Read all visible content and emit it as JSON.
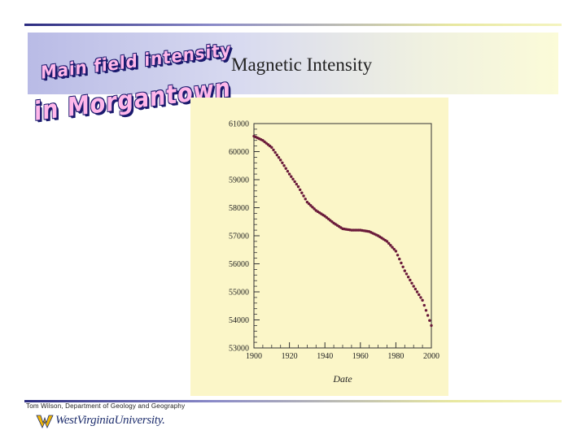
{
  "header": {
    "fancy_title_line1": "Main field intensity",
    "fancy_title_line2": "in Morgantown",
    "slide_title": "Magnetic Intensity"
  },
  "footer": {
    "credit": "Tom Wilson, Department of Geology and Geography",
    "logo_text": "WestVirginiaUniversity."
  },
  "colors": {
    "accent_navy": "#2b2b80",
    "chart_background": "#fbf6c8",
    "data_point": "#6a1a3a",
    "fancy_title_fill": "#ffb7ea"
  },
  "chart_data": {
    "type": "scatter",
    "title": "",
    "xlabel": "Date",
    "ylabel": "",
    "xlim": [
      1900,
      2000
    ],
    "ylim": [
      53000,
      61000
    ],
    "x_ticks": [
      "1900",
      "1920",
      "1940",
      "1960",
      "1980",
      "2000"
    ],
    "y_ticks": [
      "53000",
      "54000",
      "55000",
      "56000",
      "57000",
      "58000",
      "59000",
      "60000",
      "61000"
    ],
    "grid": false,
    "series": [
      {
        "x": [
          1900,
          1905,
          1910,
          1915,
          1920,
          1925,
          1930,
          1935,
          1940,
          1945,
          1950,
          1955,
          1960,
          1965,
          1970,
          1975,
          1980,
          1985,
          1990,
          1995,
          2000
        ],
        "y": [
          60550,
          60400,
          60150,
          59700,
          59200,
          58750,
          58200,
          57900,
          57700,
          57450,
          57250,
          57200,
          57200,
          57150,
          57000,
          56800,
          56450,
          55750,
          55200,
          54700,
          53800
        ]
      }
    ]
  }
}
